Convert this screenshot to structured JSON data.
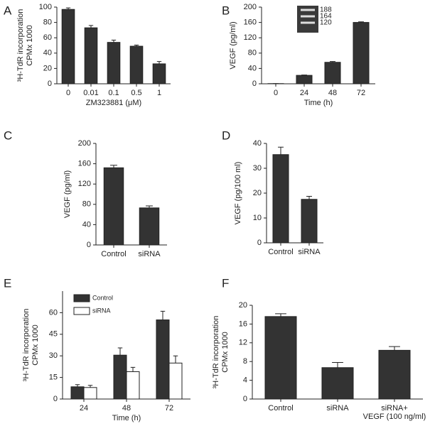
{
  "chart_data": [
    {
      "type": "bar",
      "panel": "A",
      "ylabel": [
        "³H-TdR incorporation",
        "CPMx 1000"
      ],
      "xlabel": "ZM323881 (μM)",
      "categories": [
        "0",
        "0.01",
        "0.1",
        "0.5",
        "1"
      ],
      "values": [
        97,
        73,
        54,
        49,
        26
      ],
      "errors": [
        2,
        3,
        3,
        1.5,
        3
      ],
      "color": "#333333",
      "ylim": [
        0,
        100
      ],
      "yticks": [
        0,
        20,
        40,
        60,
        80,
        100
      ]
    },
    {
      "type": "bar",
      "panel": "B",
      "ylabel": [
        "VEGF (pg/ml)"
      ],
      "xlabel": "Time (h)",
      "categories": [
        "0",
        "24",
        "48",
        "72"
      ],
      "values": [
        0.5,
        22,
        56,
        160
      ],
      "errors": [
        0,
        1,
        2,
        1.5
      ],
      "color": "#333333",
      "ylim": [
        0,
        200
      ],
      "yticks": [
        0,
        40,
        80,
        120,
        160,
        200
      ],
      "inset_labels": [
        "188",
        "164",
        "120"
      ]
    },
    {
      "type": "bar",
      "panel": "C",
      "ylabel": [
        "VEGF (pg/ml)"
      ],
      "categories": [
        "Control",
        "siRNA"
      ],
      "values": [
        152,
        73
      ],
      "errors": [
        5,
        4
      ],
      "color": "#333333",
      "ylim": [
        0,
        200
      ],
      "yticks": [
        0,
        40,
        80,
        120,
        160,
        200
      ]
    },
    {
      "type": "bar",
      "panel": "D",
      "ylabel": [
        "VEGF (pg/100 ml)"
      ],
      "categories": [
        "Control",
        "siRNA"
      ],
      "values": [
        35.5,
        17.5
      ],
      "errors": [
        3,
        1.2
      ],
      "color": "#333333",
      "ylim": [
        0,
        40
      ],
      "yticks": [
        0,
        10,
        20,
        30,
        40
      ]
    },
    {
      "type": "grouped-bar",
      "panel": "E",
      "ylabel": [
        "³H-TdR incorporation",
        "CPMx 1000"
      ],
      "xlabel": "Time (h)",
      "categories": [
        "24",
        "48",
        "72"
      ],
      "series": [
        {
          "name": "Control",
          "color": "#333333",
          "values": [
            8.5,
            30.5,
            55
          ],
          "errors": [
            1.5,
            5,
            6
          ]
        },
        {
          "name": "siRNA",
          "color": "#ffffff",
          "values": [
            8,
            19,
            25
          ],
          "errors": [
            1.5,
            3,
            5
          ]
        }
      ],
      "ylim": [
        0,
        75
      ],
      "yticks": [
        0,
        15,
        30,
        45,
        60
      ]
    },
    {
      "type": "bar",
      "panel": "F",
      "ylabel": [
        "³H-TdR incorporation",
        "CPMx 1000"
      ],
      "categories": [
        "Control",
        "siRNA",
        [
          "siRNA+",
          "VEGF (100 ng/ml)"
        ]
      ],
      "values": [
        17.6,
        6.7,
        10.4
      ],
      "errors": [
        0.6,
        1.1,
        0.8
      ],
      "color": "#333333",
      "ylim": [
        0,
        20
      ],
      "yticks": [
        0,
        4,
        8,
        12,
        16,
        20
      ]
    }
  ]
}
